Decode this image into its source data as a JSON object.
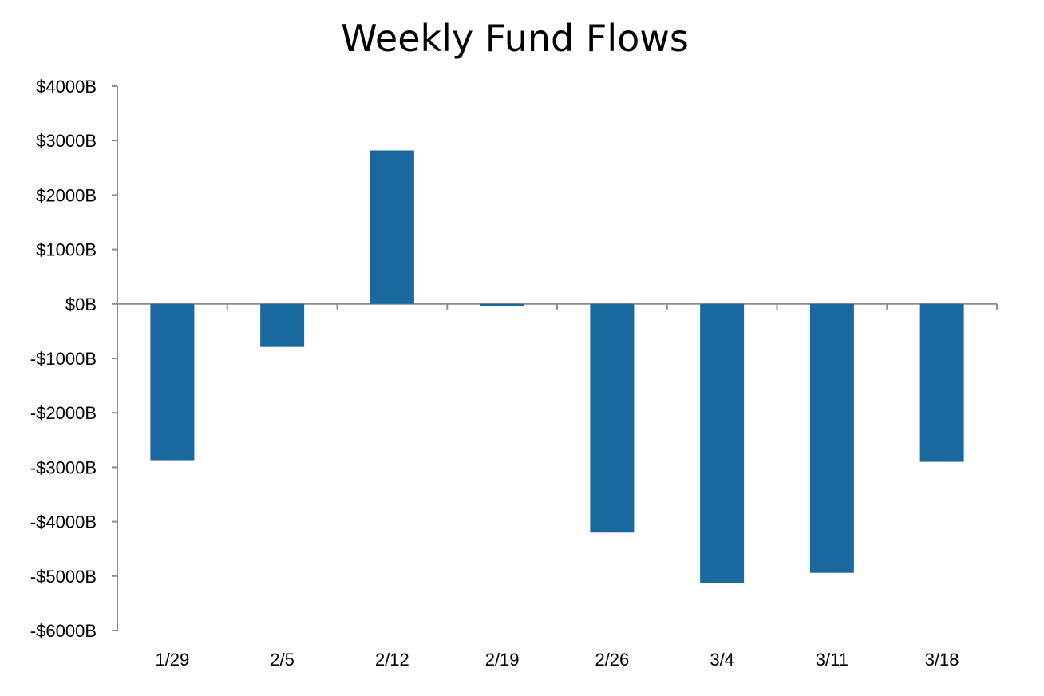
{
  "chart_data": {
    "type": "bar",
    "title": "Weekly Fund Flows",
    "xlabel": "",
    "ylabel": "",
    "categories": [
      "1/29",
      "2/5",
      "2/12",
      "2/19",
      "2/26",
      "3/4",
      "3/11",
      "3/18"
    ],
    "values": [
      -2870,
      -790,
      2820,
      -40,
      -4200,
      -5120,
      -4940,
      -2900
    ],
    "ylim": [
      -6000,
      4000
    ],
    "yticks": [
      4000,
      3000,
      2000,
      1000,
      0,
      -1000,
      -2000,
      -3000,
      -4000,
      -5000,
      -6000
    ],
    "ytick_labels": [
      "$4000B",
      "$3000B",
      "$2000B",
      "$1000B",
      "$0B",
      "-$1000B",
      "-$2000B",
      "-$3000B",
      "-$4000B",
      "-$5000B",
      "-$6000B"
    ],
    "bar_color": "#1a68a0",
    "grid": false,
    "legend": "none"
  }
}
